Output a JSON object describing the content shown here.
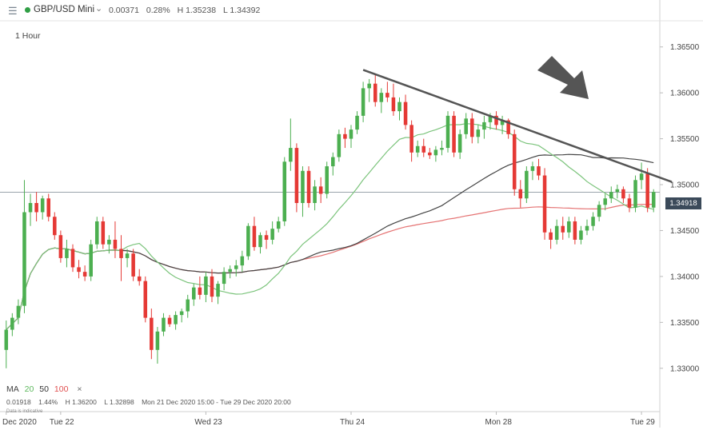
{
  "header": {
    "instrument": "GBP/USD Mini",
    "change": "0.00371",
    "change_pct": "0.28%",
    "high": "H 1.35238",
    "low": "L 1.34392"
  },
  "interval": "1 Hour",
  "ma_legend": {
    "label": "MA",
    "periods": [
      "20",
      "50",
      "100"
    ],
    "close": "×"
  },
  "stats": {
    "value": "0.01918",
    "pct": "1.44%",
    "high": "H 1.36200",
    "low": "L 1.32898",
    "range": "Mon 21 Dec 2020 15:00 - Tue 29 Dec 2020 20:00"
  },
  "disclaimer": "Data is indicative",
  "current_price": "1.34918",
  "colors": {
    "up": "#4caf50",
    "down": "#e53935",
    "ma20": "#7cc47c",
    "ma50": "#444444",
    "ma100": "#e57373",
    "trendline": "#555555",
    "arrow": "#555555"
  },
  "chart_data": {
    "type": "candlestick",
    "y_ticks": [
      "1.36500",
      "1.36000",
      "1.35500",
      "1.35000",
      "1.34500",
      "1.34000",
      "1.33500",
      "1.33000"
    ],
    "ylim": [
      1.3285,
      1.3675
    ],
    "x_labels": [
      {
        "label": "Dec 2020",
        "index": 0
      },
      {
        "label": "Tue 22",
        "index": 9
      },
      {
        "label": "Wed 23",
        "index": 33
      },
      {
        "label": "Thu 24",
        "index": 57
      },
      {
        "label": "Mon 28",
        "index": 81
      },
      {
        "label": "Tue 29",
        "index": 105
      }
    ],
    "candles": [
      [
        1.332,
        1.3352,
        1.33,
        1.3342
      ],
      [
        1.3342,
        1.336,
        1.3335,
        1.3355
      ],
      [
        1.3355,
        1.3375,
        1.3348,
        1.3368
      ],
      [
        1.3368,
        1.3505,
        1.336,
        1.347
      ],
      [
        1.347,
        1.349,
        1.3455,
        1.348
      ],
      [
        1.348,
        1.3492,
        1.346,
        1.347
      ],
      [
        1.347,
        1.3488,
        1.3462,
        1.3485
      ],
      [
        1.3485,
        1.349,
        1.346,
        1.3465
      ],
      [
        1.3465,
        1.347,
        1.344,
        1.3445
      ],
      [
        1.3445,
        1.345,
        1.3415,
        1.342
      ],
      [
        1.342,
        1.344,
        1.341,
        1.343
      ],
      [
        1.343,
        1.3435,
        1.3405,
        1.341
      ],
      [
        1.341,
        1.3418,
        1.3398,
        1.3405
      ],
      [
        1.3405,
        1.3412,
        1.3395,
        1.34
      ],
      [
        1.34,
        1.344,
        1.3395,
        1.3435
      ],
      [
        1.3435,
        1.3465,
        1.343,
        1.346
      ],
      [
        1.346,
        1.3465,
        1.343,
        1.3435
      ],
      [
        1.3435,
        1.3445,
        1.3425,
        1.344
      ],
      [
        1.344,
        1.346,
        1.342,
        1.343
      ],
      [
        1.343,
        1.3445,
        1.3395,
        1.342
      ],
      [
        1.342,
        1.343,
        1.341,
        1.3425
      ],
      [
        1.3425,
        1.343,
        1.3395,
        1.34
      ],
      [
        1.34,
        1.3408,
        1.339,
        1.3395
      ],
      [
        1.3395,
        1.34,
        1.335,
        1.3355
      ],
      [
        1.3355,
        1.3365,
        1.331,
        1.332
      ],
      [
        1.332,
        1.3345,
        1.3305,
        1.334
      ],
      [
        1.334,
        1.336,
        1.3335,
        1.3355
      ],
      [
        1.3355,
        1.3358,
        1.3345,
        1.3348
      ],
      [
        1.3348,
        1.3362,
        1.3342,
        1.3358
      ],
      [
        1.3358,
        1.3365,
        1.335,
        1.3362
      ],
      [
        1.3362,
        1.338,
        1.3355,
        1.3375
      ],
      [
        1.3375,
        1.3392,
        1.3368,
        1.3388
      ],
      [
        1.3388,
        1.34,
        1.3375,
        1.338
      ],
      [
        1.338,
        1.3405,
        1.3372,
        1.34
      ],
      [
        1.34,
        1.3408,
        1.3372,
        1.3378
      ],
      [
        1.3378,
        1.3395,
        1.337,
        1.3392
      ],
      [
        1.3392,
        1.341,
        1.3385,
        1.3405
      ],
      [
        1.3405,
        1.3412,
        1.3398,
        1.3408
      ],
      [
        1.3408,
        1.3418,
        1.34,
        1.3412
      ],
      [
        1.3412,
        1.3428,
        1.3405,
        1.3422
      ],
      [
        1.3422,
        1.3458,
        1.3418,
        1.3455
      ],
      [
        1.3455,
        1.3465,
        1.3428,
        1.3432
      ],
      [
        1.3432,
        1.3448,
        1.3425,
        1.3445
      ],
      [
        1.3445,
        1.345,
        1.343,
        1.344
      ],
      [
        1.344,
        1.346,
        1.3435,
        1.3452
      ],
      [
        1.3452,
        1.3465,
        1.3448,
        1.346
      ],
      [
        1.346,
        1.353,
        1.3455,
        1.3525
      ],
      [
        1.3525,
        1.3572,
        1.3515,
        1.354
      ],
      [
        1.354,
        1.3545,
        1.347,
        1.348
      ],
      [
        1.348,
        1.352,
        1.3465,
        1.3515
      ],
      [
        1.3515,
        1.352,
        1.3475,
        1.348
      ],
      [
        1.348,
        1.3505,
        1.3472,
        1.3498
      ],
      [
        1.3498,
        1.3508,
        1.348,
        1.349
      ],
      [
        1.349,
        1.3525,
        1.3485,
        1.352
      ],
      [
        1.352,
        1.3535,
        1.351,
        1.353
      ],
      [
        1.353,
        1.356,
        1.3525,
        1.3555
      ],
      [
        1.3555,
        1.3562,
        1.354,
        1.355
      ],
      [
        1.355,
        1.3565,
        1.354,
        1.356
      ],
      [
        1.356,
        1.358,
        1.3555,
        1.3575
      ],
      [
        1.3575,
        1.3612,
        1.3568,
        1.3605
      ],
      [
        1.3605,
        1.3615,
        1.359,
        1.361
      ],
      [
        1.361,
        1.362,
        1.3585,
        1.359
      ],
      [
        1.359,
        1.3605,
        1.3578,
        1.36
      ],
      [
        1.36,
        1.3612,
        1.359,
        1.3595
      ],
      [
        1.3595,
        1.361,
        1.3575,
        1.358
      ],
      [
        1.358,
        1.3595,
        1.357,
        1.359
      ],
      [
        1.359,
        1.3598,
        1.356,
        1.3565
      ],
      [
        1.3565,
        1.357,
        1.3525,
        1.3535
      ],
      [
        1.3535,
        1.3548,
        1.353,
        1.3542
      ],
      [
        1.3542,
        1.355,
        1.353,
        1.3535
      ],
      [
        1.3535,
        1.354,
        1.3528,
        1.3532
      ],
      [
        1.3532,
        1.3542,
        1.3525,
        1.3538
      ],
      [
        1.3538,
        1.3548,
        1.3532,
        1.354
      ],
      [
        1.354,
        1.358,
        1.3535,
        1.3575
      ],
      [
        1.3575,
        1.358,
        1.353,
        1.3535
      ],
      [
        1.3535,
        1.356,
        1.3528,
        1.3555
      ],
      [
        1.3555,
        1.3578,
        1.355,
        1.3572
      ],
      [
        1.3572,
        1.3578,
        1.3545,
        1.3552
      ],
      [
        1.3552,
        1.3565,
        1.3545,
        1.356
      ],
      [
        1.356,
        1.3575,
        1.355,
        1.3568
      ],
      [
        1.3568,
        1.3578,
        1.356,
        1.3575
      ],
      [
        1.3575,
        1.358,
        1.356,
        1.3565
      ],
      [
        1.3565,
        1.3575,
        1.3555,
        1.357
      ],
      [
        1.357,
        1.3572,
        1.355,
        1.3555
      ],
      [
        1.3555,
        1.356,
        1.3488,
        1.3495
      ],
      [
        1.3495,
        1.3505,
        1.3475,
        1.3485
      ],
      [
        1.3485,
        1.352,
        1.348,
        1.3515
      ],
      [
        1.3515,
        1.3525,
        1.3505,
        1.352
      ],
      [
        1.352,
        1.3528,
        1.3505,
        1.351
      ],
      [
        1.351,
        1.3518,
        1.344,
        1.3448
      ],
      [
        1.3448,
        1.3452,
        1.343,
        1.344
      ],
      [
        1.344,
        1.3462,
        1.3435,
        1.3455
      ],
      [
        1.3455,
        1.3465,
        1.344,
        1.3448
      ],
      [
        1.3448,
        1.3465,
        1.3442,
        1.346
      ],
      [
        1.346,
        1.3465,
        1.3435,
        1.344
      ],
      [
        1.344,
        1.3455,
        1.3435,
        1.345
      ],
      [
        1.345,
        1.3462,
        1.3445,
        1.3455
      ],
      [
        1.3455,
        1.347,
        1.345,
        1.3465
      ],
      [
        1.3465,
        1.3482,
        1.346,
        1.3478
      ],
      [
        1.3478,
        1.349,
        1.3472,
        1.3485
      ],
      [
        1.3485,
        1.3498,
        1.348,
        1.3492
      ],
      [
        1.3492,
        1.35,
        1.3485,
        1.3495
      ],
      [
        1.3495,
        1.3498,
        1.348,
        1.3485
      ],
      [
        1.3485,
        1.349,
        1.347,
        1.3475
      ],
      [
        1.3475,
        1.351,
        1.347,
        1.3505
      ],
      [
        1.3505,
        1.3524,
        1.3495,
        1.3512
      ],
      [
        1.3512,
        1.3518,
        1.347,
        1.3475
      ],
      [
        1.3475,
        1.3495,
        1.347,
        1.3492
      ]
    ],
    "ma20_label": "MA 20",
    "ma50_label": "MA 50",
    "ma100_label": "MA 100",
    "trendline": [
      [
        59,
        1.3625
      ],
      [
        110,
        1.3503
      ]
    ],
    "current_price": 1.34918
  }
}
